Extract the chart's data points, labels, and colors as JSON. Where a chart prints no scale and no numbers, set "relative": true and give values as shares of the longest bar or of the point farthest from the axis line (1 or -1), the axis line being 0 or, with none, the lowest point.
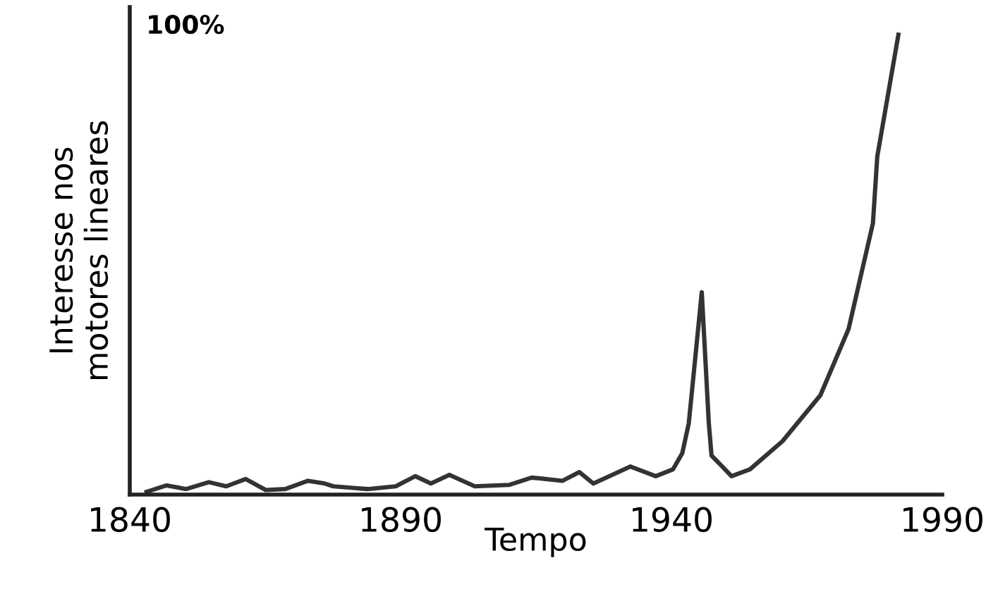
{
  "chart_data": {
    "type": "line",
    "relative": true,
    "xlabel": "Tempo",
    "ylabel": "Interesse nos\nmotores lineares",
    "annotations": [
      "100%"
    ],
    "xlim": [
      1840,
      1990
    ],
    "xticks": [
      1840,
      1890,
      1940,
      1990
    ],
    "grid": false,
    "line_style": "solid",
    "x": [
      1843.1,
      1846.8,
      1850.4,
      1854.6,
      1857.8,
      1861.4,
      1865.1,
      1868.7,
      1872.9,
      1876.0,
      1877.6,
      1883.9,
      1889.1,
      1892.7,
      1895.6,
      1899.0,
      1903.7,
      1910.0,
      1914.2,
      1919.9,
      1923.0,
      1925.6,
      1932.4,
      1937.1,
      1940.3,
      1942.0,
      1943.2,
      1945.6,
      1946.9,
      1947.4,
      1951.1,
      1954.5,
      1960.5,
      1967.5,
      1972.7,
      1977.2,
      1978.0,
      1981.9
    ],
    "series": [
      {
        "color": "#333333",
        "values": [
          0.006,
          0.02,
          0.012,
          0.027,
          0.018,
          0.034,
          0.01,
          0.012,
          0.03,
          0.024,
          0.018,
          0.012,
          0.018,
          0.04,
          0.024,
          0.043,
          0.018,
          0.021,
          0.037,
          0.03,
          0.049,
          0.024,
          0.061,
          0.04,
          0.055,
          0.09,
          0.155,
          0.44,
          0.155,
          0.085,
          0.04,
          0.055,
          0.116,
          0.216,
          0.36,
          0.59,
          0.735,
          1.0
        ]
      }
    ]
  }
}
